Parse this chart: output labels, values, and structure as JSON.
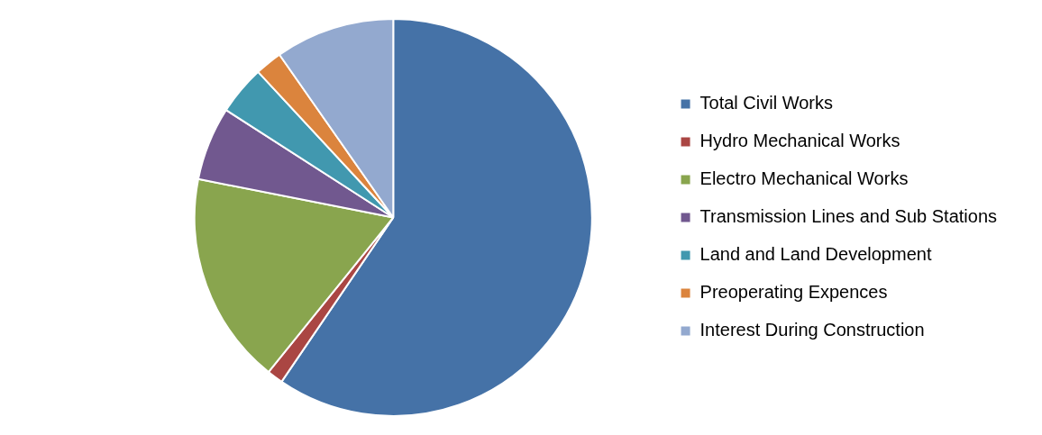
{
  "chart_data": {
    "type": "pie",
    "categories": [
      "Total Civil Works",
      "Hydro Mechanical Works",
      "Electro Mechanical Works",
      "Transmission Lines and Sub Stations",
      "Land and Land Development",
      "Preoperating Expences",
      "Interest During Construction"
    ],
    "values": [
      59.5,
      1.3,
      17.3,
      6,
      4,
      2.2,
      9.7
    ],
    "colors": [
      "#4572a7",
      "#aa4643",
      "#89a54e",
      "#71588f",
      "#4198af",
      "#db843d",
      "#93a9cf"
    ],
    "legend": "right"
  }
}
